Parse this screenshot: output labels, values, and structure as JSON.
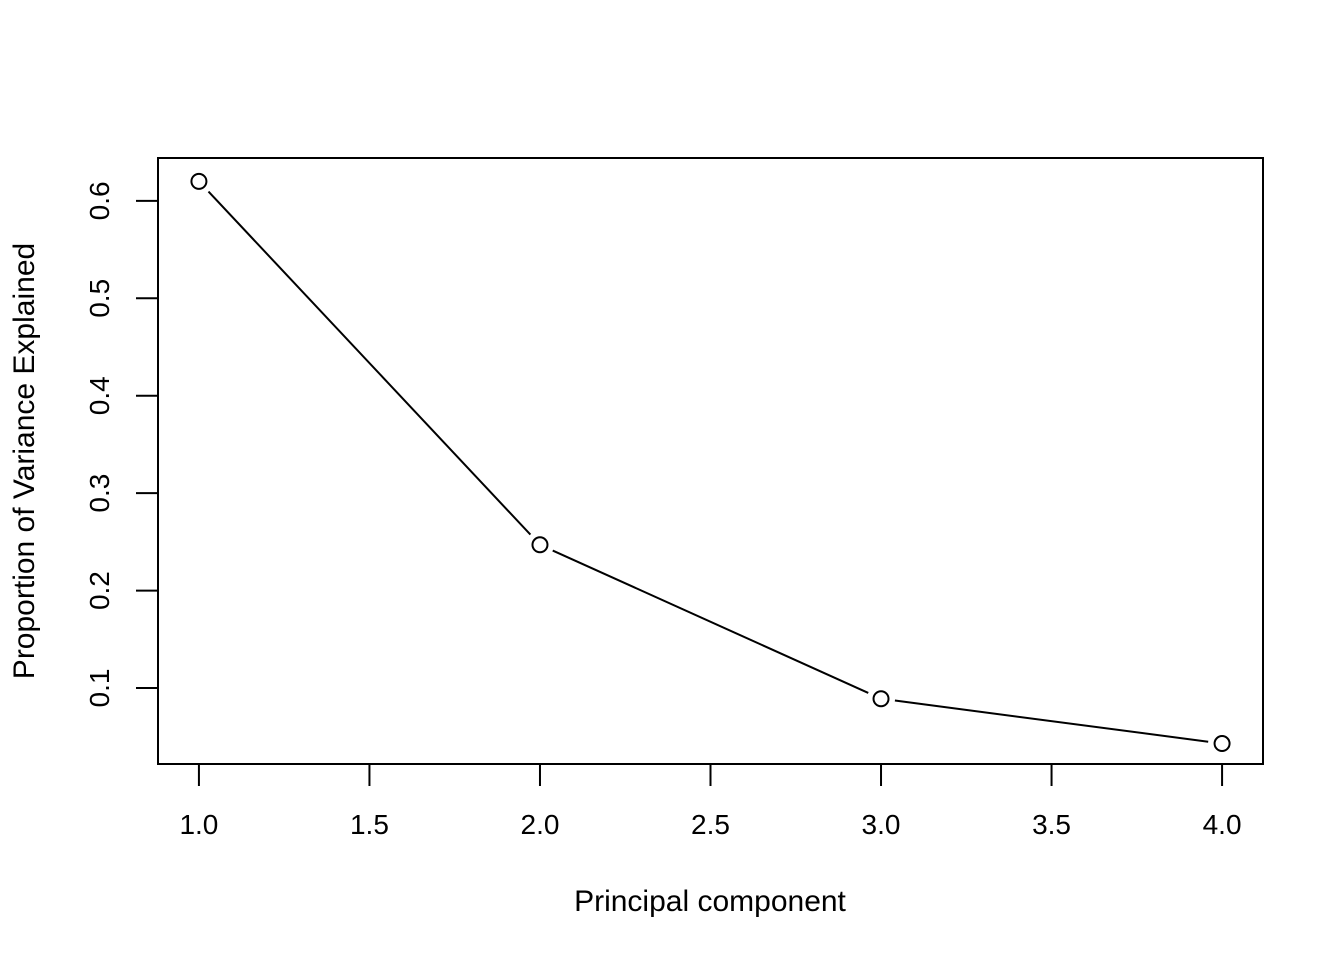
{
  "chart_data": {
    "type": "line",
    "title": "",
    "xlabel": "Principal component",
    "ylabel": "Proportion of Variance Explained",
    "x": [
      1,
      2,
      3,
      4
    ],
    "series": [
      {
        "values": [
          0.62,
          0.247,
          0.089,
          0.043
        ]
      }
    ],
    "xlim": [
      0.88,
      4.12
    ],
    "ylim": [
      0.022,
      0.644
    ],
    "x_ticks": [
      1.0,
      1.5,
      2.0,
      2.5,
      3.0,
      3.5,
      4.0
    ],
    "x_tick_labels": [
      "1.0",
      "1.5",
      "2.0",
      "2.5",
      "3.0",
      "3.5",
      "4.0"
    ],
    "y_ticks": [
      0.1,
      0.2,
      0.3,
      0.4,
      0.5,
      0.6
    ],
    "y_tick_labels": [
      "0.1",
      "0.2",
      "0.3",
      "0.4",
      "0.5",
      "0.6"
    ],
    "grid": false,
    "marker": "open-circle",
    "line_color": "#000000"
  }
}
